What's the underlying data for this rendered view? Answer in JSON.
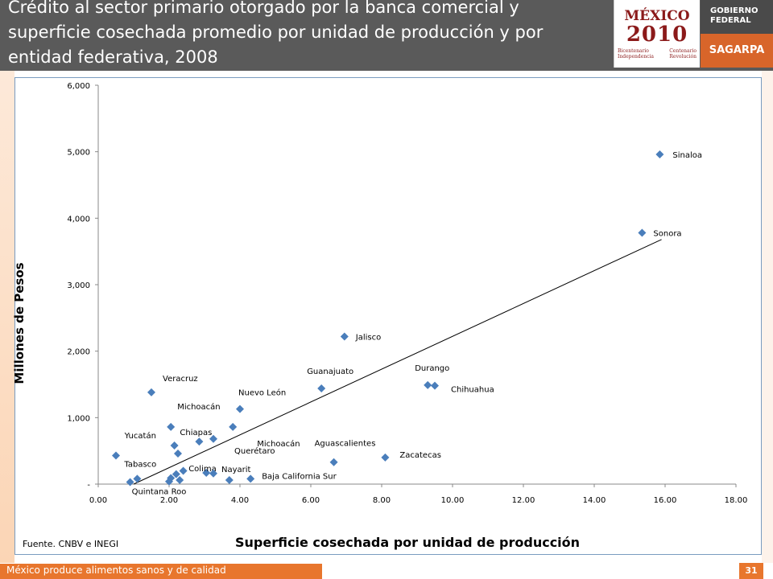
{
  "header": {
    "title": "Crédito al sector primario otorgado por la banca comercial y superficie cosechada promedio por unidad de producción y por entidad federativa, 2008",
    "logo_mexico_word": "MÉXICO",
    "logo_mexico_year": "2010",
    "logo_mexico_sub_left": "Bicentenario Independencia",
    "logo_mexico_sub_right": "Centenario Revolución",
    "logo_gobierno": "GOBIERNO FEDERAL",
    "logo_sagarpa": "SAGARPA"
  },
  "footer": {
    "slogan": "México produce alimentos sanos y de calidad",
    "page_number": "31",
    "source": "Fuente. CNBV e INEGI"
  },
  "colors": {
    "marker": "#4a7ebb",
    "trendline": "#000000",
    "header_bg": "#5a5a5a",
    "accent": "#e8762d"
  },
  "chart_data": {
    "type": "scatter",
    "title": "",
    "xlabel": "Superficie cosechada por unidad de producción",
    "ylabel": "Millones de Pesos",
    "xlim": [
      0,
      18
    ],
    "ylim": [
      0,
      6000
    ],
    "x_ticks": [
      "0.00",
      "2.00",
      "4.00",
      "6.00",
      "8.00",
      "10.00",
      "12.00",
      "14.00",
      "16.00",
      "18.00"
    ],
    "y_ticks": [
      "-",
      "1,000",
      "2,000",
      "3,000",
      "4,000",
      "5,000",
      "6,000"
    ],
    "grid": false,
    "marker": "diamond",
    "points": [
      {
        "x": 15.85,
        "y": 4960,
        "label": "Sinaloa"
      },
      {
        "x": 15.35,
        "y": 3780,
        "label": "Sonora"
      },
      {
        "x": 6.95,
        "y": 2220,
        "label": "Jalisco"
      },
      {
        "x": 9.3,
        "y": 1490,
        "label": "Durango"
      },
      {
        "x": 9.5,
        "y": 1480,
        "label": "Chihuahua"
      },
      {
        "x": 6.3,
        "y": 1440,
        "label": "Guanajuato"
      },
      {
        "x": 1.5,
        "y": 1380,
        "label": "Veracruz"
      },
      {
        "x": 4.0,
        "y": 1130,
        "label": "Nuevo León"
      },
      {
        "x": 2.05,
        "y": 860,
        "label": "Michoacán"
      },
      {
        "x": 3.8,
        "y": 860,
        "label": "Michoacán"
      },
      {
        "x": 3.25,
        "y": 680,
        "label": "Querétaro"
      },
      {
        "x": 2.85,
        "y": 640,
        "label": "Chiapas"
      },
      {
        "x": 2.15,
        "y": 580,
        "label": "Yucatán"
      },
      {
        "x": 2.25,
        "y": 460,
        "label": ""
      },
      {
        "x": 0.5,
        "y": 430,
        "label": ""
      },
      {
        "x": 8.1,
        "y": 400,
        "label": "Zacatecas"
      },
      {
        "x": 6.65,
        "y": 330,
        "label": "Aguascalientes"
      },
      {
        "x": 2.4,
        "y": 200,
        "label": ""
      },
      {
        "x": 3.05,
        "y": 170,
        "label": "Colima"
      },
      {
        "x": 3.25,
        "y": 160,
        "label": "Nayarit"
      },
      {
        "x": 2.2,
        "y": 150,
        "label": ""
      },
      {
        "x": 2.05,
        "y": 90,
        "label": ""
      },
      {
        "x": 1.1,
        "y": 80,
        "label": "Tabasco"
      },
      {
        "x": 4.3,
        "y": 80,
        "label": "Baja California Sur"
      },
      {
        "x": 3.7,
        "y": 60,
        "label": ""
      },
      {
        "x": 2.3,
        "y": 60,
        "label": ""
      },
      {
        "x": 2.0,
        "y": 40,
        "label": ""
      },
      {
        "x": 0.9,
        "y": 30,
        "label": "Quintana Roo"
      }
    ],
    "trendline": {
      "x": [
        1.0,
        15.9
      ],
      "y": [
        0,
        3680
      ]
    }
  }
}
